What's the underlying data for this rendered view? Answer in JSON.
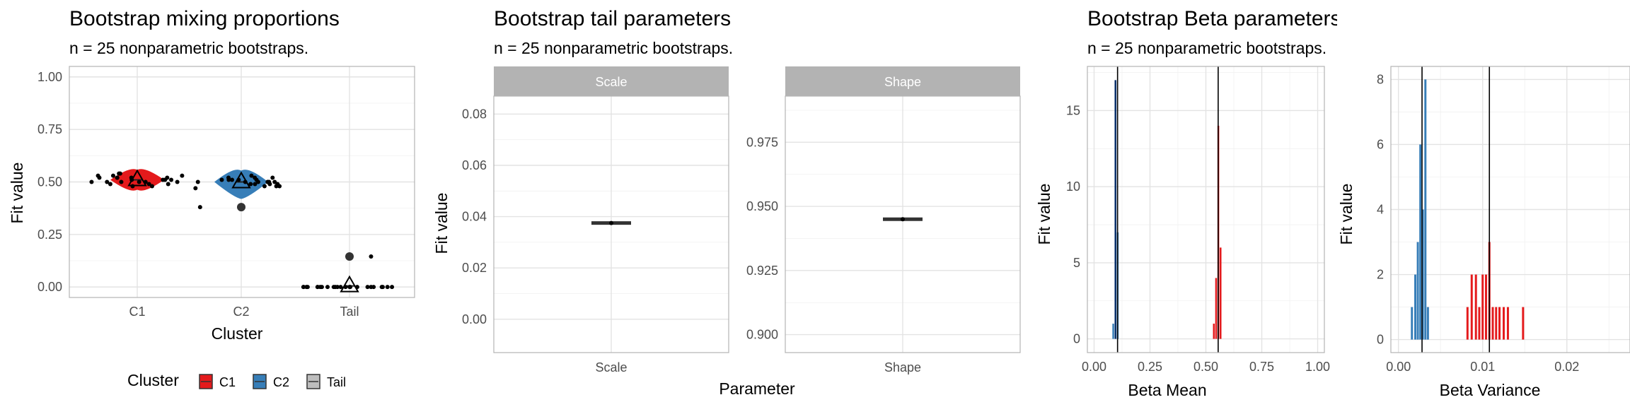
{
  "chart_data": [
    {
      "type": "violin-jitter",
      "title": "Bootstrap mixing proportions",
      "subtitle": "n = 25 nonparametric bootstraps.",
      "xlabel": "Cluster",
      "ylabel": "Fit value",
      "categories": [
        "C1",
        "C2",
        "Tail"
      ],
      "ylim": [
        0,
        1
      ],
      "yticks": [
        "0.00",
        "0.25",
        "0.50",
        "0.75",
        "1.00"
      ],
      "legend": {
        "title": "Cluster",
        "position": "bottom",
        "entries": [
          "C1",
          "C2",
          "Tail"
        ]
      },
      "colors": {
        "C1": "#e41a1c",
        "C2": "#377eb8",
        "Tail": "#bdbdbd"
      },
      "point_estimates": {
        "C1": 0.51,
        "C2": 0.5,
        "Tail": 0.005
      },
      "outliers": {
        "C2": [
          0.38
        ],
        "Tail": [
          0.145
        ]
      },
      "series": [
        {
          "name": "C1",
          "values": [
            0.48,
            0.5,
            0.52,
            0.53,
            0.49,
            0.51,
            0.5,
            0.54,
            0.52,
            0.5,
            0.49,
            0.51,
            0.53,
            0.5,
            0.52,
            0.48,
            0.51,
            0.5,
            0.53,
            0.49,
            0.52,
            0.51,
            0.5,
            0.54,
            0.52
          ]
        },
        {
          "name": "C2",
          "values": [
            0.5,
            0.49,
            0.51,
            0.48,
            0.52,
            0.5,
            0.47,
            0.5,
            0.51,
            0.49,
            0.38,
            0.5,
            0.52,
            0.48,
            0.51,
            0.5,
            0.49,
            0.53,
            0.5,
            0.51,
            0.48,
            0.5,
            0.52,
            0.49,
            0.51
          ]
        },
        {
          "name": "Tail",
          "values": [
            0,
            0,
            0,
            0,
            0,
            0,
            0,
            0,
            0,
            0,
            0,
            0,
            0,
            0,
            0.145,
            0,
            0,
            0,
            0,
            0,
            0,
            0,
            0,
            0,
            0
          ]
        }
      ]
    },
    {
      "type": "faceted-boxplot",
      "title": "Bootstrap tail parameters",
      "subtitle": "n = 25 nonparametric bootstraps.",
      "xlabel": "Parameter",
      "ylabel": "Fit value",
      "facets": [
        {
          "name": "Scale",
          "category": "Scale",
          "value": 0.0375,
          "ylim": [
            -0.013,
            0.087
          ],
          "yticks": [
            "0.00",
            "0.02",
            "0.04",
            "0.06",
            "0.08"
          ]
        },
        {
          "name": "Shape",
          "category": "Shape",
          "value": 0.945,
          "ylim": [
            0.893,
            0.993
          ],
          "yticks": [
            "0.900",
            "0.925",
            "0.950",
            "0.975"
          ]
        }
      ]
    },
    {
      "type": "histogram",
      "title": "Bootstrap Beta parameters",
      "subtitle": "n = 25 nonparametric bootstraps.",
      "panels": [
        {
          "xlabel": "Beta Mean",
          "ylabel": "Fit value",
          "xlim": [
            -0.03,
            1.03
          ],
          "ylim": [
            -0.9,
            17.9
          ],
          "xticks": [
            "0.00",
            "0.25",
            "0.50",
            "0.75",
            "1.00"
          ],
          "yticks": [
            "0",
            "5",
            "10",
            "15"
          ],
          "series": [
            {
              "name": "C2",
              "color": "#377eb8",
              "dark_color": "#08306b",
              "bins": [
                [
                  0.085,
                  1
                ],
                [
                  0.095,
                  17
                ],
                [
                  0.105,
                  7
                ]
              ]
            },
            {
              "name": "C1",
              "color": "#e41a1c",
              "bins": [
                [
                  0.535,
                  1
                ],
                [
                  0.545,
                  4
                ],
                [
                  0.555,
                  14
                ],
                [
                  0.565,
                  6
                ]
              ]
            }
          ],
          "vlines": [
            0.105,
            0.555
          ]
        },
        {
          "xlabel": "Beta Variance",
          "ylabel": "Fit value",
          "xlim": [
            -0.0009,
            0.0275
          ],
          "ylim": [
            -0.4,
            8.4
          ],
          "xticks": [
            "0.00",
            "0.01",
            "0.02"
          ],
          "yticks": [
            "0",
            "2",
            "4",
            "6",
            "8"
          ],
          "series": [
            {
              "name": "C2",
              "color": "#377eb8",
              "bins": [
                [
                  0.0016,
                  1
                ],
                [
                  0.002,
                  2
                ],
                [
                  0.0023,
                  3
                ],
                [
                  0.0026,
                  6
                ],
                [
                  0.0029,
                  4
                ],
                [
                  0.0032,
                  8
                ],
                [
                  0.0035,
                  1
                ]
              ]
            },
            {
              "name": "C1",
              "color": "#e41a1c",
              "bins": [
                [
                  0.0082,
                  1
                ],
                [
                  0.0087,
                  2
                ],
                [
                  0.0092,
                  2
                ],
                [
                  0.0096,
                  1
                ],
                [
                  0.01,
                  2
                ],
                [
                  0.0104,
                  2
                ],
                [
                  0.0108,
                  3
                ],
                [
                  0.0112,
                  1
                ],
                [
                  0.0116,
                  1
                ],
                [
                  0.012,
                  1
                ],
                [
                  0.0125,
                  1
                ],
                [
                  0.013,
                  1
                ],
                [
                  0.0148,
                  1
                ]
              ]
            }
          ],
          "vlines": [
            0.0028,
            0.0108
          ]
        }
      ]
    }
  ]
}
